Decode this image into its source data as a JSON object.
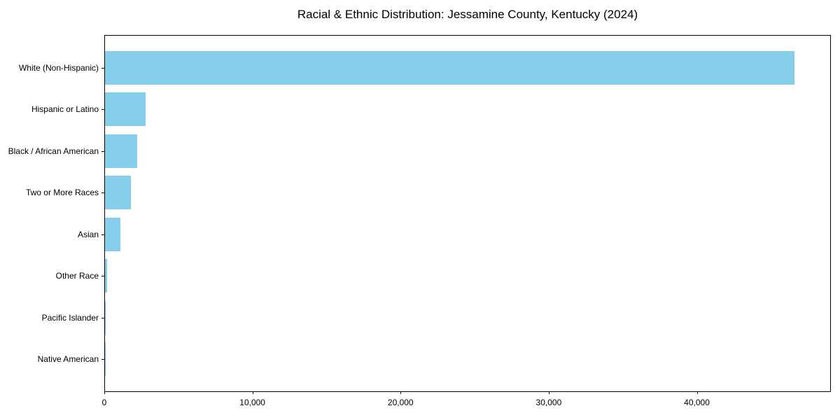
{
  "figure": {
    "title": "Racial & Ethnic Distribution: Jessamine County, Kentucky (2024)"
  },
  "chart_data": {
    "type": "bar",
    "orientation": "horizontal",
    "title": "Racial & Ethnic Distribution: Jessamine County, Kentucky (2024)",
    "categories": [
      "White (Non-Hispanic)",
      "Hispanic or Latino",
      "Black / African American",
      "Two or More Races",
      "Asian",
      "Other Race",
      "Pacific Islander",
      "Native American"
    ],
    "values": [
      46600,
      2750,
      2180,
      1750,
      1040,
      150,
      40,
      25
    ],
    "xlabel": "",
    "ylabel": "",
    "xlim": [
      0,
      49000
    ],
    "xticks": [
      0,
      10000,
      20000,
      30000,
      40000
    ],
    "xtick_labels": [
      "0",
      "10,000",
      "20,000",
      "30,000",
      "40,000"
    ],
    "bar_color": "#87CEEB",
    "axis_color": "#000000",
    "background_color": "#ffffff",
    "grid": false,
    "legend_position": "none"
  }
}
